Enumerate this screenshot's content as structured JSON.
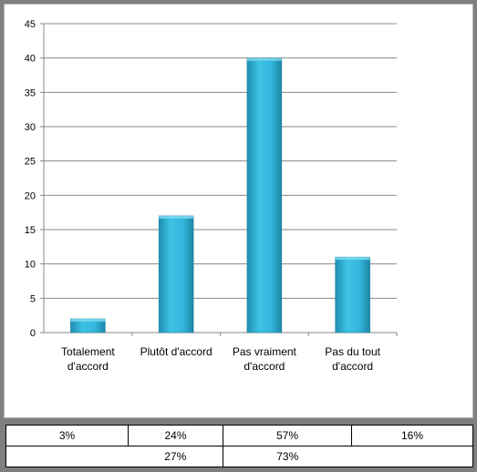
{
  "chart_data": {
    "type": "bar",
    "categories": [
      [
        "Totalement",
        "d'accord"
      ],
      [
        "Plutôt d'accord"
      ],
      [
        "Pas vraiment",
        "d'accord"
      ],
      [
        "Pas du tout",
        "d'accord"
      ]
    ],
    "values": [
      2,
      17,
      40,
      11
    ],
    "ylim": [
      0,
      45
    ],
    "yticks": [
      0,
      5,
      10,
      15,
      20,
      25,
      30,
      35,
      40,
      45
    ],
    "grid": true,
    "legend": "none",
    "bar_color": "#2fb0d6"
  },
  "table": {
    "row1": [
      "3%",
      "24%",
      "57%",
      "16%"
    ],
    "row2": [
      "",
      "27%",
      "73%",
      ""
    ]
  }
}
